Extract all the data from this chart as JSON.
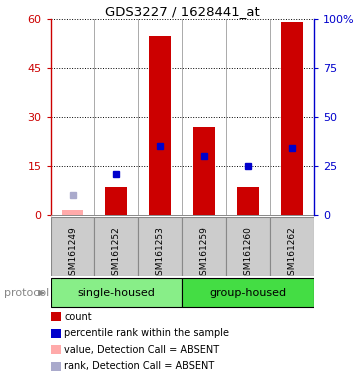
{
  "title": "GDS3227 / 1628441_at",
  "samples": [
    "GSM161249",
    "GSM161252",
    "GSM161253",
    "GSM161259",
    "GSM161260",
    "GSM161262"
  ],
  "bar_heights": [
    null,
    8.5,
    55,
    27,
    8.5,
    59
  ],
  "absent_bar_height": 1.5,
  "absent_bar_idx": 0,
  "bar_color": "#cc0000",
  "absent_bar_color": "#ffaaaa",
  "blue_markers": [
    null,
    21,
    35,
    30,
    25,
    34
  ],
  "blue_marker_color": "#0000cc",
  "absent_rank_val": 10,
  "absent_rank_idx": 0,
  "absent_rank_color": "#aaaacc",
  "ylim_left": [
    0,
    60
  ],
  "yticks_left": [
    0,
    15,
    30,
    45,
    60
  ],
  "ylim_right": [
    0,
    100
  ],
  "yticks_right": [
    0,
    25,
    50,
    75,
    100
  ],
  "left_tick_color": "#cc0000",
  "right_tick_color": "#0000cc",
  "groups": [
    {
      "label": "single-housed",
      "indices": [
        0,
        1,
        2
      ],
      "color": "#88ee88"
    },
    {
      "label": "group-housed",
      "indices": [
        3,
        4,
        5
      ],
      "color": "#44dd44"
    }
  ],
  "protocol_label": "protocol",
  "legend_items": [
    {
      "color": "#cc0000",
      "label": "count"
    },
    {
      "color": "#0000cc",
      "label": "percentile rank within the sample"
    },
    {
      "color": "#ffaaaa",
      "label": "value, Detection Call = ABSENT"
    },
    {
      "color": "#aaaacc",
      "label": "rank, Detection Call = ABSENT"
    }
  ],
  "bar_width": 0.5,
  "grid_color": "#000000",
  "bg_color": "#ffffff",
  "sample_box_color": "#cccccc",
  "sample_box_edge": "#888888"
}
